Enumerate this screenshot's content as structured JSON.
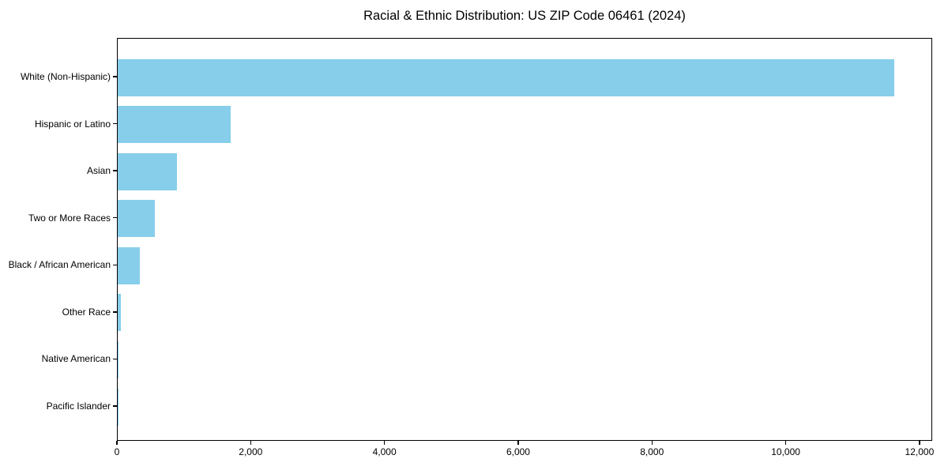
{
  "chart_data": {
    "type": "bar",
    "orientation": "horizontal",
    "title": "Racial & Ethnic Distribution: US ZIP Code 06461 (2024)",
    "categories": [
      "White (Non-Hispanic)",
      "Hispanic or Latino",
      "Asian",
      "Two or More Races",
      "Black / African American",
      "Other Race",
      "Native American",
      "Pacific Islander"
    ],
    "values": [
      11610,
      1690,
      885,
      555,
      330,
      45,
      10,
      3
    ],
    "xlabel": "",
    "ylabel": "",
    "xlim": [
      0,
      12190
    ],
    "xticks": [
      0,
      2000,
      4000,
      6000,
      8000,
      10000,
      12000
    ],
    "xtick_labels": [
      "0",
      "2,000",
      "4,000",
      "6,000",
      "8,000",
      "10,000",
      "12,000"
    ],
    "bar_color": "#87CEEB",
    "grid": false,
    "legend": "none"
  }
}
